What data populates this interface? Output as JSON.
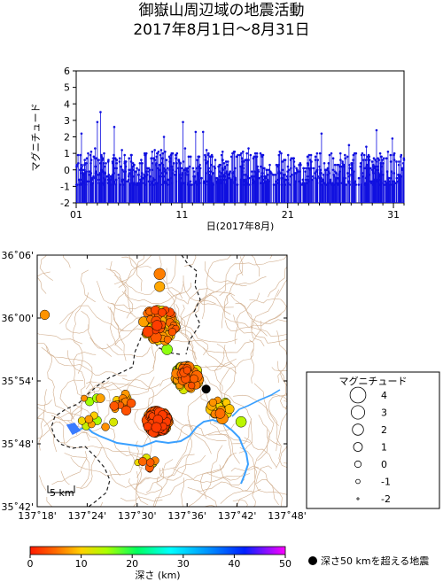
{
  "header": {
    "title_line1": "御嶽山周辺域の地震活動",
    "title_line2": "2017年8月1日～8月31日"
  },
  "chart_data": [
    {
      "type": "line",
      "style": "stem",
      "ylabel": "マグニチュード",
      "xlabel": "日(2017年8月)",
      "ylim": [
        -2,
        6
      ],
      "yticks": [
        "-2",
        "-1",
        "0",
        "1",
        "2",
        "3",
        "4",
        "5",
        "6"
      ],
      "xlim": [
        1,
        32
      ],
      "xticks": [
        {
          "day": 1,
          "label": "01"
        },
        {
          "day": 11,
          "label": "11"
        },
        {
          "day": 21,
          "label": "21"
        },
        {
          "day": 31,
          "label": "31"
        }
      ],
      "series_color": "#1010e0",
      "baseline": -2,
      "notable_events": [
        {
          "day": 3.3,
          "mag": 3.5
        },
        {
          "day": 3.0,
          "mag": 2.9
        },
        {
          "day": 11.1,
          "mag": 2.9
        },
        {
          "day": 4.6,
          "mag": 2.6
        },
        {
          "day": 24.2,
          "mag": 2.2
        },
        {
          "day": 29.4,
          "mag": 2.4
        },
        {
          "day": 12.3,
          "mag": 2.3
        },
        {
          "day": 13.0,
          "mag": 2.3
        },
        {
          "day": 30.9,
          "mag": 1.9
        },
        {
          "day": 1.5,
          "mag": 2.2
        },
        {
          "day": 9.3,
          "mag": 2.0
        }
      ]
    },
    {
      "type": "scatter",
      "subtype": "epicenter-map",
      "x_axis": "longitude",
      "y_axis": "latitude",
      "xlim": [
        137.3,
        137.8
      ],
      "ylim": [
        35.7,
        36.1
      ],
      "xticks": [
        "137˚18'",
        "137˚24'",
        "137˚30'",
        "137˚36'",
        "137˚42'",
        "137˚48'"
      ],
      "yticks": [
        "35˚42'",
        "35˚48'",
        "35˚54'",
        "36˚00'",
        "36˚06'"
      ],
      "scale_bar_label": "5 km",
      "legend": {
        "title": "マグニチュード",
        "entries": [
          "4",
          "3",
          "2",
          "1",
          "0",
          "-1",
          "-2"
        ]
      },
      "deep_marker_label": "深さ50 kmを超える地震",
      "deep_events": [
        {
          "lon": 137.638,
          "lat": 35.887
        }
      ],
      "colorbar": {
        "label": "深さ (km)",
        "ticks": [
          "0",
          "10",
          "20",
          "30",
          "40",
          "50"
        ],
        "range": [
          0,
          50
        ]
      },
      "clusters": [
        {
          "lon": 137.54,
          "lat": 35.835,
          "spread": 0.022,
          "count": 260,
          "mag_min": 0.0,
          "mag_max": 1.8,
          "depth_min": 2,
          "depth_max": 9
        },
        {
          "lon": 137.6,
          "lat": 35.905,
          "spread": 0.025,
          "count": 90,
          "mag_min": 0.0,
          "mag_max": 2.0,
          "depth_min": 3,
          "depth_max": 16
        },
        {
          "lon": 137.665,
          "lat": 35.855,
          "spread": 0.02,
          "count": 30,
          "mag_min": 0.0,
          "mag_max": 2.2,
          "depth_min": 5,
          "depth_max": 15
        },
        {
          "lon": 137.545,
          "lat": 35.99,
          "spread": 0.035,
          "count": 70,
          "mag_min": 0.0,
          "mag_max": 2.0,
          "depth_min": 2,
          "depth_max": 12
        },
        {
          "lon": 137.47,
          "lat": 35.865,
          "spread": 0.02,
          "count": 18,
          "mag_min": 0.0,
          "mag_max": 1.5,
          "depth_min": 3,
          "depth_max": 10
        },
        {
          "lon": 137.52,
          "lat": 35.775,
          "spread": 0.02,
          "count": 10,
          "mag_min": 0.0,
          "mag_max": 1.6,
          "depth_min": 4,
          "depth_max": 12
        },
        {
          "lon": 137.42,
          "lat": 35.85,
          "spread": 0.04,
          "count": 14,
          "mag_min": -0.5,
          "mag_max": 1.2,
          "depth_min": 5,
          "depth_max": 18
        }
      ],
      "notable_events": [
        {
          "lon": 137.545,
          "lat": 36.07,
          "mag": 2.1,
          "depth": 6
        },
        {
          "lon": 137.545,
          "lat": 36.05,
          "mag": 1.6,
          "depth": 8
        },
        {
          "lon": 137.315,
          "lat": 36.005,
          "mag": 1.3,
          "depth": 7
        },
        {
          "lon": 137.708,
          "lat": 35.835,
          "mag": 1.8,
          "depth": 14
        },
        {
          "lon": 137.56,
          "lat": 35.95,
          "mag": 1.8,
          "depth": 16
        }
      ]
    }
  ]
}
